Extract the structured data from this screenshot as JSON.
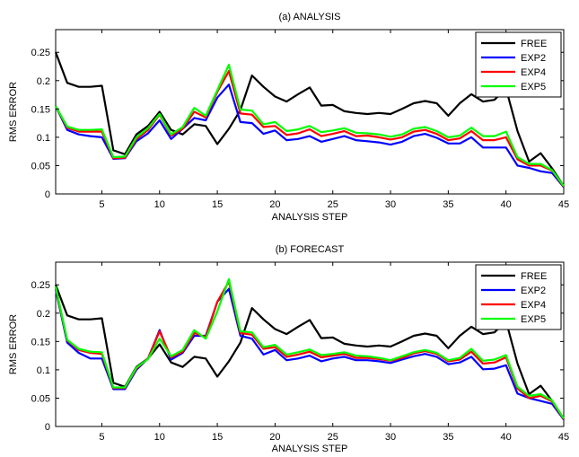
{
  "chart_data": [
    {
      "type": "line",
      "title": "(a) ANALYSIS",
      "xlabel": "ANALYSIS STEP",
      "ylabel": "RMS ERROR",
      "xlim": [
        1,
        45
      ],
      "ylim": [
        0,
        0.29
      ],
      "xticks": [
        "5",
        "10",
        "15",
        "20",
        "25",
        "30",
        "35",
        "40",
        "45"
      ],
      "yticks": [
        "0",
        "0.05",
        "0.1",
        "0.15",
        "0.2",
        "0.25"
      ],
      "legend_position": "top-right",
      "x": [
        1,
        2,
        3,
        4,
        5,
        6,
        7,
        8,
        9,
        10,
        11,
        12,
        13,
        14,
        15,
        16,
        17,
        18,
        19,
        20,
        21,
        22,
        23,
        24,
        25,
        26,
        27,
        28,
        29,
        30,
        31,
        32,
        33,
        34,
        35,
        36,
        37,
        38,
        39,
        40,
        41,
        42,
        43,
        44,
        45
      ],
      "series": [
        {
          "name": "FREE",
          "color": "#000000",
          "values": [
            0.25,
            0.196,
            0.189,
            0.189,
            0.191,
            0.077,
            0.07,
            0.105,
            0.12,
            0.145,
            0.113,
            0.105,
            0.123,
            0.12,
            0.088,
            0.115,
            0.148,
            0.209,
            0.189,
            0.172,
            0.163,
            0.176,
            0.188,
            0.156,
            0.157,
            0.146,
            0.143,
            0.141,
            0.143,
            0.141,
            0.15,
            0.16,
            0.164,
            0.16,
            0.138,
            0.16,
            0.176,
            0.163,
            0.166,
            0.186,
            0.111,
            0.057,
            0.072,
            0.045,
            0.014
          ]
        },
        {
          "name": "EXP2",
          "color": "#0000ff",
          "values": [
            0.155,
            0.113,
            0.105,
            0.102,
            0.1,
            0.062,
            0.063,
            0.093,
            0.107,
            0.13,
            0.097,
            0.115,
            0.134,
            0.13,
            0.17,
            0.193,
            0.127,
            0.125,
            0.106,
            0.112,
            0.095,
            0.097,
            0.102,
            0.092,
            0.097,
            0.102,
            0.095,
            0.093,
            0.091,
            0.087,
            0.092,
            0.102,
            0.106,
            0.099,
            0.089,
            0.089,
            0.1,
            0.082,
            0.082,
            0.082,
            0.05,
            0.046,
            0.04,
            0.037,
            0.012
          ]
        },
        {
          "name": "EXP4",
          "color": "#ff0000",
          "values": [
            0.155,
            0.117,
            0.11,
            0.11,
            0.11,
            0.063,
            0.064,
            0.097,
            0.113,
            0.14,
            0.103,
            0.115,
            0.145,
            0.135,
            0.18,
            0.217,
            0.142,
            0.14,
            0.118,
            0.12,
            0.104,
            0.107,
            0.114,
            0.102,
            0.106,
            0.111,
            0.102,
            0.103,
            0.1,
            0.096,
            0.1,
            0.11,
            0.113,
            0.106,
            0.095,
            0.098,
            0.111,
            0.095,
            0.095,
            0.1,
            0.061,
            0.05,
            0.05,
            0.041,
            0.013
          ]
        },
        {
          "name": "EXP5",
          "color": "#00ff00",
          "values": [
            0.155,
            0.119,
            0.113,
            0.113,
            0.114,
            0.065,
            0.066,
            0.1,
            0.116,
            0.141,
            0.105,
            0.118,
            0.152,
            0.138,
            0.183,
            0.228,
            0.149,
            0.147,
            0.123,
            0.127,
            0.111,
            0.114,
            0.12,
            0.109,
            0.112,
            0.116,
            0.108,
            0.107,
            0.105,
            0.101,
            0.105,
            0.115,
            0.118,
            0.111,
            0.1,
            0.103,
            0.117,
            0.102,
            0.102,
            0.11,
            0.065,
            0.053,
            0.053,
            0.042,
            0.014
          ]
        }
      ]
    },
    {
      "type": "line",
      "title": "(b) FORECAST",
      "xlabel": "ANALYSIS STEP",
      "ylabel": "RMS ERROR",
      "xlim": [
        1,
        45
      ],
      "ylim": [
        0,
        0.29
      ],
      "xticks": [
        "5",
        "10",
        "15",
        "20",
        "25",
        "30",
        "35",
        "40",
        "45"
      ],
      "yticks": [
        "0",
        "0.05",
        "0.1",
        "0.15",
        "0.2",
        "0.25"
      ],
      "legend_position": "top-right",
      "x": [
        1,
        2,
        3,
        4,
        5,
        6,
        7,
        8,
        9,
        10,
        11,
        12,
        13,
        14,
        15,
        16,
        17,
        18,
        19,
        20,
        21,
        22,
        23,
        24,
        25,
        26,
        27,
        28,
        29,
        30,
        31,
        32,
        33,
        34,
        35,
        36,
        37,
        38,
        39,
        40,
        41,
        42,
        43,
        44,
        45
      ],
      "series": [
        {
          "name": "FREE",
          "color": "#000000",
          "values": [
            0.25,
            0.196,
            0.189,
            0.189,
            0.191,
            0.077,
            0.07,
            0.105,
            0.12,
            0.145,
            0.113,
            0.105,
            0.123,
            0.12,
            0.088,
            0.115,
            0.148,
            0.209,
            0.189,
            0.172,
            0.163,
            0.176,
            0.188,
            0.156,
            0.157,
            0.146,
            0.143,
            0.141,
            0.143,
            0.141,
            0.15,
            0.16,
            0.164,
            0.16,
            0.138,
            0.16,
            0.176,
            0.163,
            0.166,
            0.186,
            0.111,
            0.057,
            0.072,
            0.045,
            0.014
          ]
        },
        {
          "name": "EXP2",
          "color": "#0000ff",
          "values": [
            0.242,
            0.148,
            0.13,
            0.12,
            0.12,
            0.066,
            0.066,
            0.1,
            0.12,
            0.17,
            0.118,
            0.13,
            0.16,
            0.16,
            0.22,
            0.243,
            0.16,
            0.155,
            0.127,
            0.135,
            0.117,
            0.12,
            0.125,
            0.115,
            0.12,
            0.123,
            0.117,
            0.117,
            0.115,
            0.112,
            0.118,
            0.124,
            0.128,
            0.123,
            0.11,
            0.113,
            0.123,
            0.101,
            0.102,
            0.108,
            0.058,
            0.05,
            0.045,
            0.04,
            0.012
          ]
        },
        {
          "name": "EXP4",
          "color": "#ff0000",
          "values": [
            0.245,
            0.152,
            0.135,
            0.13,
            0.128,
            0.068,
            0.068,
            0.102,
            0.12,
            0.168,
            0.122,
            0.132,
            0.165,
            0.158,
            0.22,
            0.256,
            0.165,
            0.162,
            0.137,
            0.14,
            0.123,
            0.127,
            0.132,
            0.122,
            0.125,
            0.128,
            0.121,
            0.121,
            0.119,
            0.116,
            0.121,
            0.129,
            0.133,
            0.128,
            0.115,
            0.118,
            0.132,
            0.111,
            0.113,
            0.122,
            0.067,
            0.05,
            0.054,
            0.044,
            0.013
          ]
        },
        {
          "name": "EXP5",
          "color": "#00ff00",
          "values": [
            0.247,
            0.153,
            0.137,
            0.132,
            0.131,
            0.069,
            0.069,
            0.104,
            0.119,
            0.155,
            0.124,
            0.135,
            0.17,
            0.155,
            0.203,
            0.26,
            0.168,
            0.166,
            0.14,
            0.144,
            0.127,
            0.131,
            0.136,
            0.126,
            0.128,
            0.131,
            0.125,
            0.124,
            0.121,
            0.117,
            0.124,
            0.131,
            0.135,
            0.13,
            0.117,
            0.121,
            0.137,
            0.116,
            0.118,
            0.126,
            0.07,
            0.054,
            0.057,
            0.046,
            0.014
          ]
        }
      ]
    }
  ]
}
